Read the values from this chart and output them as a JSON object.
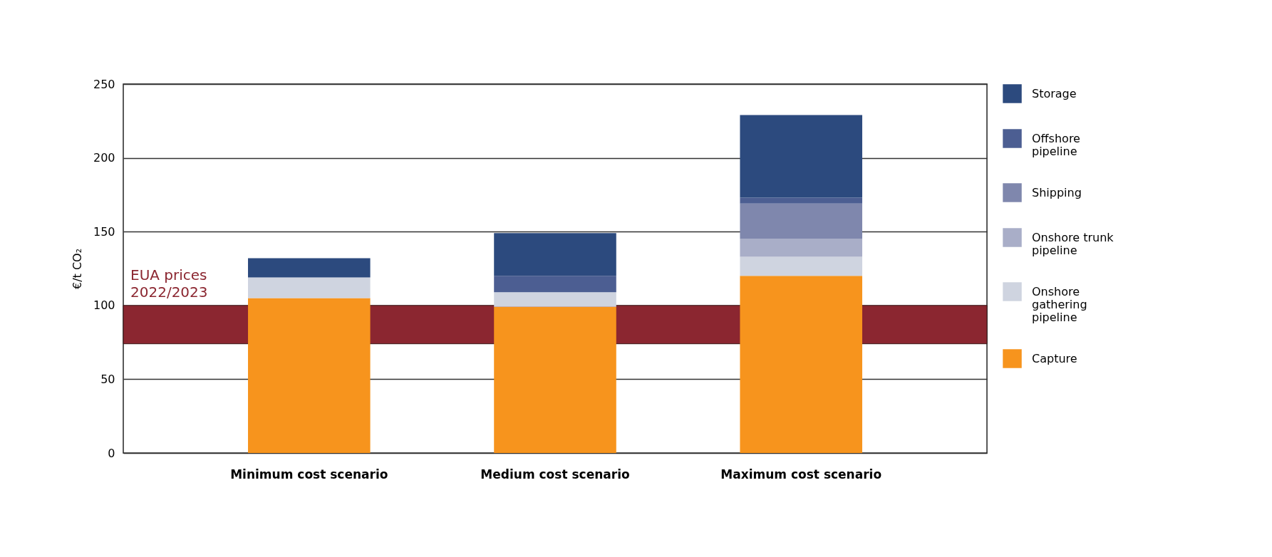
{
  "chart_data": {
    "type": "bar",
    "stacked": true,
    "ylabel": "€/t CO₂",
    "categories": [
      "Minimum cost scenario",
      "Medium cost scenario",
      "Maximum cost scenario"
    ],
    "series": [
      {
        "name": "Capture",
        "color": "#f7941d",
        "values": [
          105,
          99,
          120
        ]
      },
      {
        "name": "Onshore gathering pipeline",
        "color": "#cfd4e0",
        "values": [
          14,
          10,
          13
        ]
      },
      {
        "name": "Onshore trunk pipeline",
        "color": "#a9aec8",
        "values": [
          null,
          null,
          12
        ]
      },
      {
        "name": "Shipping",
        "color": "#7f87ad",
        "values": [
          null,
          null,
          24
        ]
      },
      {
        "name": "Offshore pipeline",
        "color": "#4c5e92",
        "values": [
          null,
          11,
          4
        ]
      },
      {
        "name": "Storage",
        "color": "#2c4a7e",
        "values": [
          13,
          29,
          56
        ]
      }
    ],
    "ylim": [
      0,
      250
    ],
    "yticks": [
      0,
      50,
      100,
      150,
      200,
      250
    ],
    "grid": "y",
    "legend": "right",
    "bands": [
      {
        "axis": "y",
        "from": 74,
        "to": 100,
        "label": "EUA prices 2022/2023",
        "color": "#8b2630"
      }
    ]
  }
}
